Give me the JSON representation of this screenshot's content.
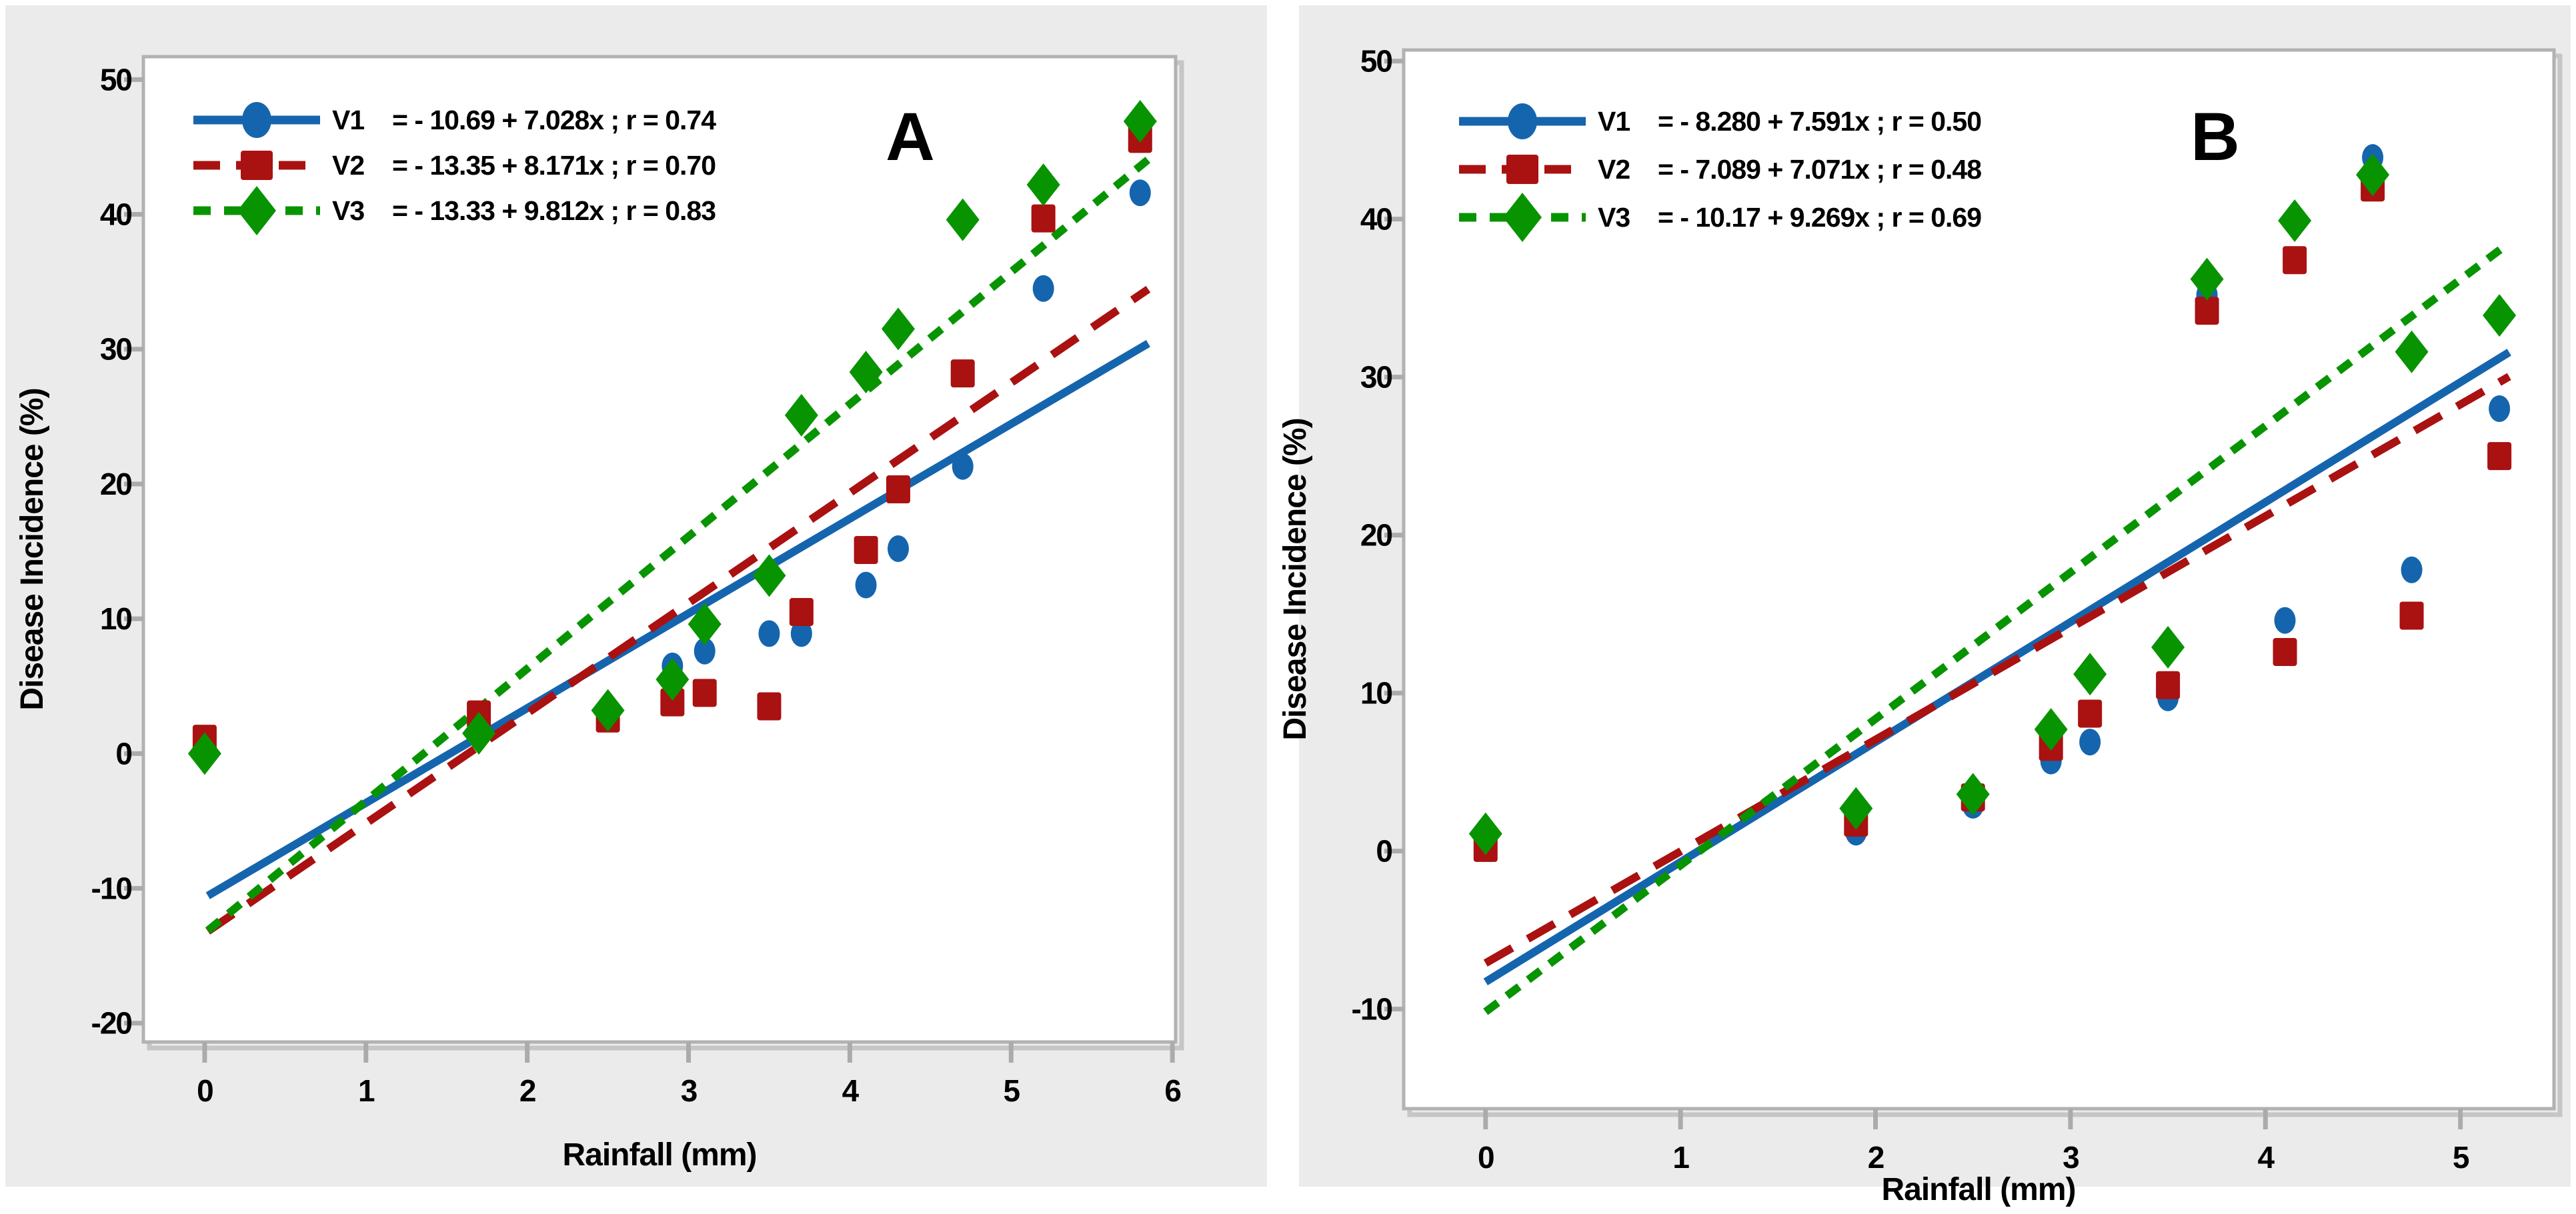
{
  "figure": {
    "background_color": "#ffffff",
    "panel_background_color": "#ebebeb",
    "plot_background_color": "#ffffff",
    "frame_color": "#b2b2b2",
    "tick_color": "#ababab",
    "shadow_color": "#c6c6c6"
  },
  "chart_data": [
    {
      "type": "scatter",
      "panel_label": "A",
      "xlabel": "Rainfall (mm)",
      "ylabel": "Disease Incidence (%)",
      "x_ticks": [
        0,
        1,
        2,
        3,
        4,
        5,
        6
      ],
      "y_ticks": [
        -20,
        -10,
        0,
        10,
        20,
        30,
        40,
        50
      ],
      "xlim": [
        -0.38,
        6.02
      ],
      "ylim": [
        -21.4,
        51.7
      ],
      "line_span": [
        0.02,
        5.85
      ],
      "grid": false,
      "legend_position": "top-left",
      "series": [
        {
          "name": "V1",
          "color": "#1565AE",
          "marker": "circle",
          "line_style": "solid",
          "intercept": -10.69,
          "slope": 7.028,
          "r": 0.74,
          "equation": "=  - 10.69 + 7.028x ; r = 0.74",
          "points": [
            [
              0,
              0.2
            ],
            [
              1.7,
              2.4
            ],
            [
              2.5,
              3.0
            ],
            [
              2.9,
              6.5
            ],
            [
              3.1,
              7.6
            ],
            [
              3.5,
              8.9
            ],
            [
              3.7,
              8.9
            ],
            [
              4.1,
              12.5
            ],
            [
              4.3,
              15.2
            ],
            [
              4.7,
              21.3
            ],
            [
              5.2,
              34.5
            ],
            [
              5.8,
              41.6
            ]
          ]
        },
        {
          "name": "V2",
          "color": "#AA1111",
          "marker": "square",
          "line_style": "dashed",
          "intercept": -13.35,
          "slope": 8.171,
          "r": 0.7,
          "equation": "=  - 13.35 + 8.171x ; r = 0.70",
          "points": [
            [
              0,
              1.1
            ],
            [
              1.7,
              2.9
            ],
            [
              2.5,
              2.6
            ],
            [
              2.9,
              3.8
            ],
            [
              3.1,
              4.5
            ],
            [
              3.5,
              3.5
            ],
            [
              3.7,
              10.5
            ],
            [
              4.1,
              15.1
            ],
            [
              4.3,
              19.6
            ],
            [
              4.7,
              28.2
            ],
            [
              5.2,
              39.7
            ],
            [
              5.8,
              45.6
            ]
          ]
        },
        {
          "name": "V3",
          "color": "#089400",
          "marker": "diamond",
          "line_style": "dotted",
          "intercept": -13.33,
          "slope": 9.812,
          "r": 0.83,
          "equation": "=  - 13.33 + 9.812x ; r = 0.83",
          "points": [
            [
              0,
              0.0
            ],
            [
              1.7,
              1.5
            ],
            [
              2.5,
              3.2
            ],
            [
              2.9,
              5.5
            ],
            [
              3.1,
              9.6
            ],
            [
              3.5,
              13.2
            ],
            [
              3.7,
              25.1
            ],
            [
              4.1,
              28.3
            ],
            [
              4.3,
              31.5
            ],
            [
              4.7,
              39.6
            ],
            [
              5.2,
              42.2
            ],
            [
              5.8,
              46.9
            ]
          ]
        }
      ]
    },
    {
      "type": "scatter",
      "panel_label": "B",
      "xlabel": "Rainfall (mm)",
      "ylabel": "Disease Incidence (%)",
      "x_ticks": [
        0,
        1,
        2,
        3,
        4,
        5
      ],
      "y_ticks": [
        -10,
        0,
        10,
        20,
        30,
        40,
        50
      ],
      "xlim": [
        -0.42,
        5.48
      ],
      "ylim": [
        -16.3,
        50.7
      ],
      "line_span": [
        0.0,
        5.25
      ],
      "grid": false,
      "legend_position": "top-left",
      "series": [
        {
          "name": "V1",
          "color": "#1565AE",
          "marker": "circle",
          "line_style": "solid",
          "intercept": -8.28,
          "slope": 7.591,
          "r": 0.5,
          "equation": "=  - 8.280 + 7.591x ; r = 0.50",
          "points": [
            [
              0,
              0.6
            ],
            [
              1.9,
              1.2
            ],
            [
              2.5,
              2.9
            ],
            [
              2.9,
              5.7
            ],
            [
              3.1,
              6.9
            ],
            [
              3.5,
              9.7
            ],
            [
              3.7,
              35.2
            ],
            [
              4.1,
              14.6
            ],
            [
              4.55,
              43.9
            ],
            [
              4.75,
              17.8
            ],
            [
              5.2,
              28.0
            ]
          ]
        },
        {
          "name": "V2",
          "color": "#AA1111",
          "marker": "square",
          "line_style": "dashed",
          "intercept": -7.089,
          "slope": 7.071,
          "r": 0.48,
          "equation": "=  - 7.089 + 7.071x ; r = 0.48",
          "points": [
            [
              0,
              0.2
            ],
            [
              1.9,
              1.8
            ],
            [
              2.5,
              3.4
            ],
            [
              2.9,
              6.6
            ],
            [
              3.1,
              8.7
            ],
            [
              3.5,
              10.5
            ],
            [
              3.7,
              34.2
            ],
            [
              4.1,
              12.6
            ],
            [
              4.15,
              37.4
            ],
            [
              4.55,
              42.0
            ],
            [
              4.75,
              14.9
            ],
            [
              5.2,
              25.0
            ]
          ]
        },
        {
          "name": "V3",
          "color": "#089400",
          "marker": "diamond",
          "line_style": "dotted",
          "intercept": -10.17,
          "slope": 9.269,
          "r": 0.69,
          "equation": "=  - 10.17 + 9.269x ; r = 0.69",
          "points": [
            [
              0,
              1.1
            ],
            [
              1.9,
              2.7
            ],
            [
              2.5,
              3.6
            ],
            [
              2.9,
              7.7
            ],
            [
              3.1,
              11.2
            ],
            [
              3.5,
              12.9
            ],
            [
              3.7,
              36.2
            ],
            [
              4.15,
              39.9
            ],
            [
              4.55,
              42.8
            ],
            [
              4.75,
              31.6
            ],
            [
              5.2,
              33.9
            ]
          ]
        }
      ]
    }
  ]
}
